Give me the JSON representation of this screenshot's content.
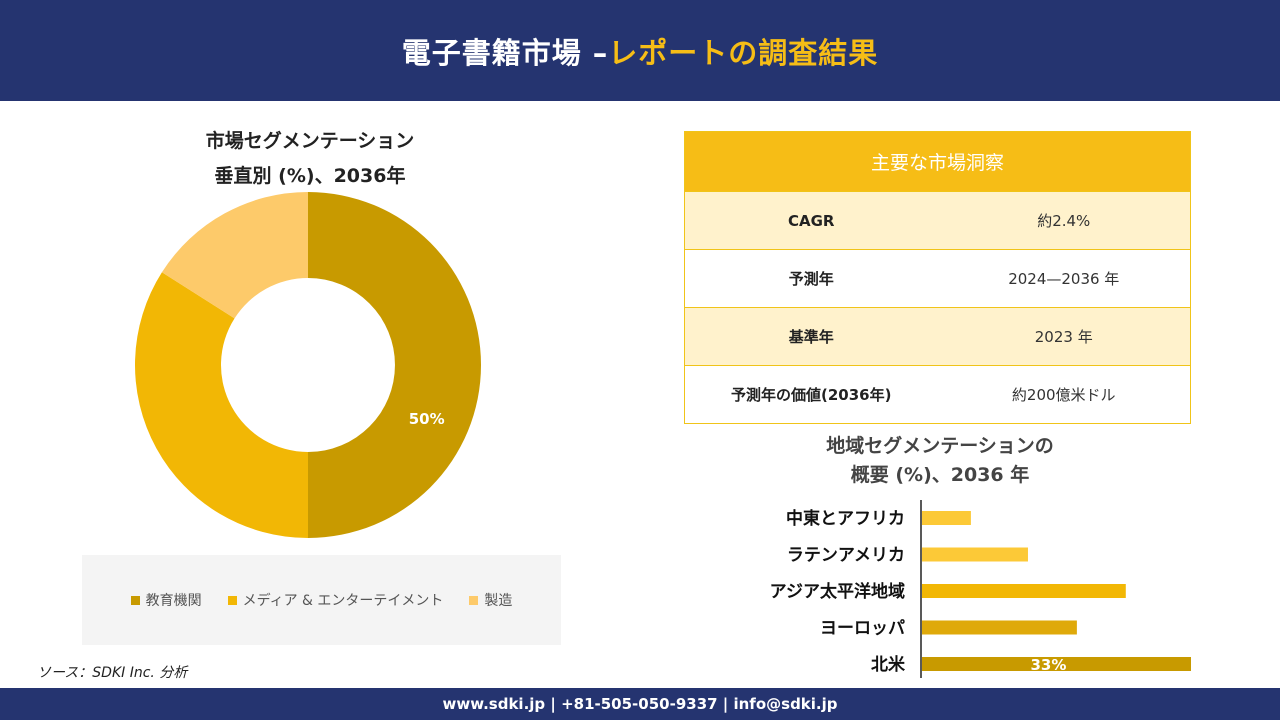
{
  "header": {
    "title_main": "電子書籍市場 –",
    "title_accent": "レポートの調査結果"
  },
  "donut": {
    "title_line1": "市場セグメンテーション",
    "title_line2": "垂直別 (%)、2036年"
  },
  "insights": {
    "heading": "主要な市場洞察",
    "rows": [
      {
        "key": "CAGR",
        "value": "約2.4%"
      },
      {
        "key": "予測年",
        "value": "2024—2036 年"
      },
      {
        "key": "基準年",
        "value": "2023 年"
      },
      {
        "key": "予測年の価値(2036年)",
        "value": "約200億米ドル"
      }
    ]
  },
  "bar": {
    "title_line1": "地域セグメンテーションの",
    "title_line2": "概要 (%)、2036 年"
  },
  "source": "ソース：SDKI Inc. 分析",
  "footer": {
    "contact": "www.sdki.jp | +81-505-050-9337 | info@sdki.jp"
  },
  "chart_data": [
    {
      "type": "pie",
      "categories": [
        "教育機関",
        "メディア & エンターテイメント",
        "製造"
      ],
      "values": [
        50,
        34,
        16
      ],
      "colors": [
        "#c89a00",
        "#f2b705",
        "#fdca6a"
      ],
      "data_labels": [
        "50%",
        "",
        ""
      ],
      "title": "市場セグメンテーション 垂直別 (%)、2036年",
      "legend": "bottom"
    },
    {
      "type": "bar",
      "orientation": "horizontal",
      "categories": [
        "中東とアフリカ",
        "ラテンアメリカ",
        "アジア太平洋地域",
        "ヨーロッパ",
        "北米"
      ],
      "values": [
        6,
        13,
        25,
        19,
        33
      ],
      "colors": [
        "#fcc937",
        "#fcc937",
        "#f2b705",
        "#dfa90a",
        "#c89a00"
      ],
      "data_labels": [
        "",
        "",
        "",
        "",
        "33%"
      ],
      "title": "地域セグメンテーションの 概要 (%)、2036 年",
      "xlim": [
        0,
        33
      ]
    }
  ]
}
